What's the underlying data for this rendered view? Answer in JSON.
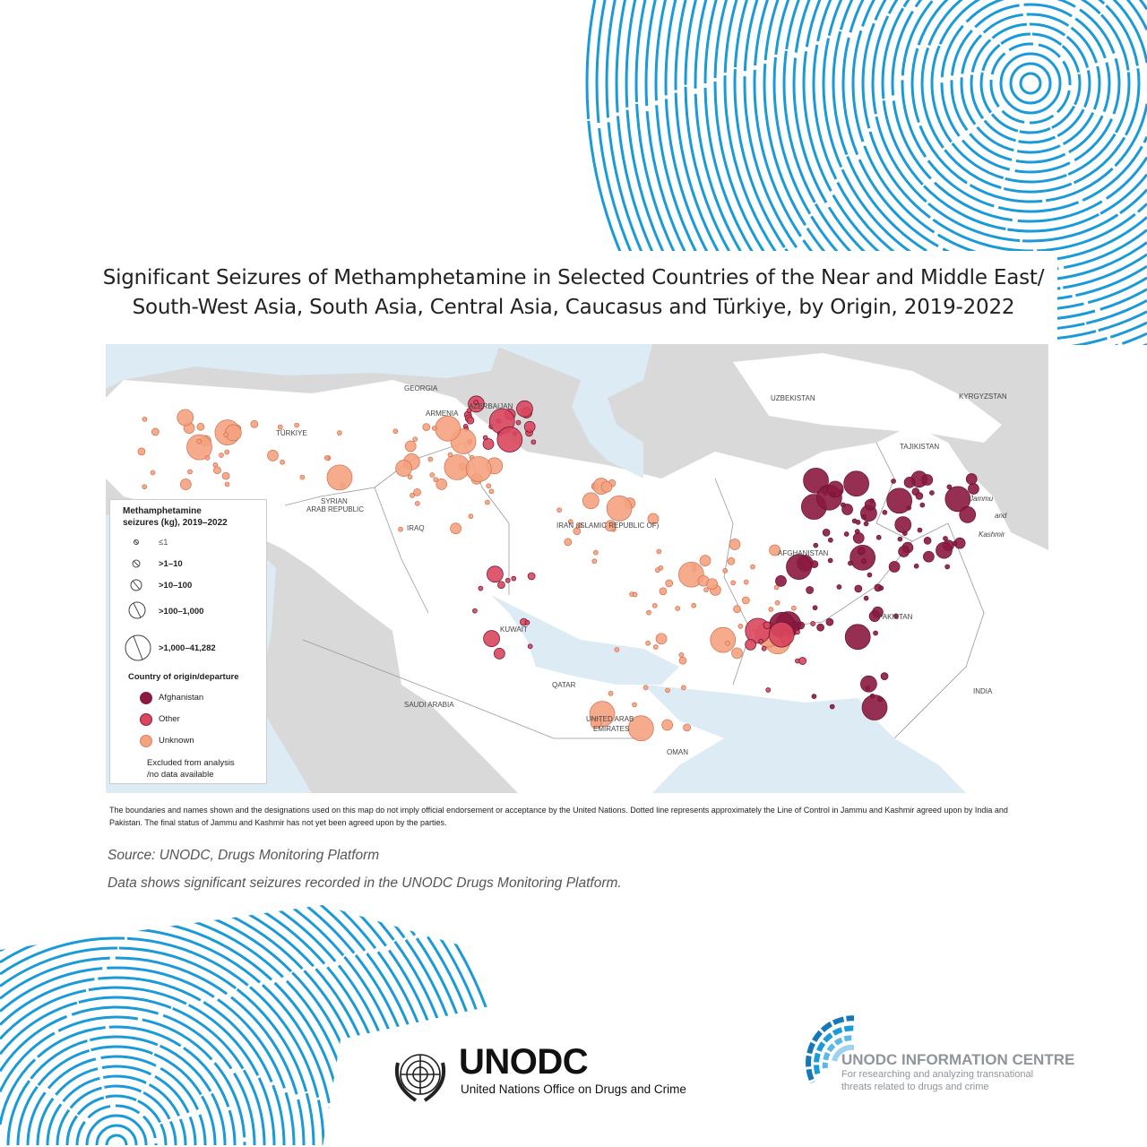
{
  "title": {
    "line1": "Significant Seizures of Methamphetamine in Selected Countries of the Near and Middle East/",
    "line2": "South-West Asia, South Asia, Central Asia, Caucasus and Türkiye, by Origin, 2019-2022"
  },
  "map": {
    "labels": {
      "georgia": "GEORGIA",
      "armenia": "ARMENIA",
      "azerbaijan": "AZERBAIJAN",
      "turkiye": "TÜRKIYE",
      "uzbekistan": "UZBEKISTAN",
      "kyrgyzstan": "KYRGYZSTAN",
      "tajikistan": "TAJIKISTAN",
      "syria_1": "SYRIAN",
      "syria_2": "ARAB REPUBLIC",
      "iraq": "IRAQ",
      "iran": "IRAN (ISLAMIC REPUBLIC OF)",
      "afghanistan": "AFGHANISTAN",
      "pakistan": "PAKISTAN",
      "kuwait": "KUWAIT",
      "qatar": "QATAR",
      "saudi": "SAUDI ARABIA",
      "uae_1": "UNITED ARAB",
      "uae_2": "EMIRATES",
      "oman": "OMAN",
      "india": "INDIA",
      "jammu": "Jammu",
      "and": "and",
      "kashmir": "Kashmir"
    },
    "colors": {
      "sea": "#dcebf4",
      "land_other": "#d9d9d9",
      "land_selected": "#ffffff",
      "afghanistan": "#8b1a3f",
      "other": "#d9475e",
      "unknown": "#f4a27f"
    }
  },
  "legend": {
    "title_1": "Methamphetamine",
    "title_2": "seizures (kg), 2019–2022",
    "sizes": [
      "≤1",
      ">1–10",
      ">10–100",
      ">100–1,000",
      ">1,000–41,282"
    ],
    "origin_title": "Country of origin/departure",
    "origins": [
      {
        "label": "Afghanistan",
        "color": "#8b1a3f"
      },
      {
        "label": "Other",
        "color": "#d9475e"
      },
      {
        "label": "Unknown",
        "color": "#f4a27f"
      }
    ],
    "excluded_1": "Excluded from analysis",
    "excluded_2": "/no data available"
  },
  "disclaimer": "The boundaries and names shown and the designations used on this map do not imply official endorsement or acceptance by the United Nations. Dotted line represents approximately the Line of Control in Jammu and Kashmir agreed upon by India and Pakistan. The final status of Jammu and Kashmir has not yet been agreed upon by the parties.",
  "source": "Source: UNODC, Drugs Monitoring Platform",
  "note": "Data shows significant seizures recorded in the UNODC Drugs Monitoring Platform.",
  "logos": {
    "unodc": "UNODC",
    "unodc_full": "United Nations Office on Drugs and Crime",
    "ic_title": "UNODC INFORMATION CENTRE",
    "ic_sub_1": "For researching and analyzing transnational",
    "ic_sub_2": "threats related to drugs and crime"
  },
  "accent_color": "#1a9ad6"
}
